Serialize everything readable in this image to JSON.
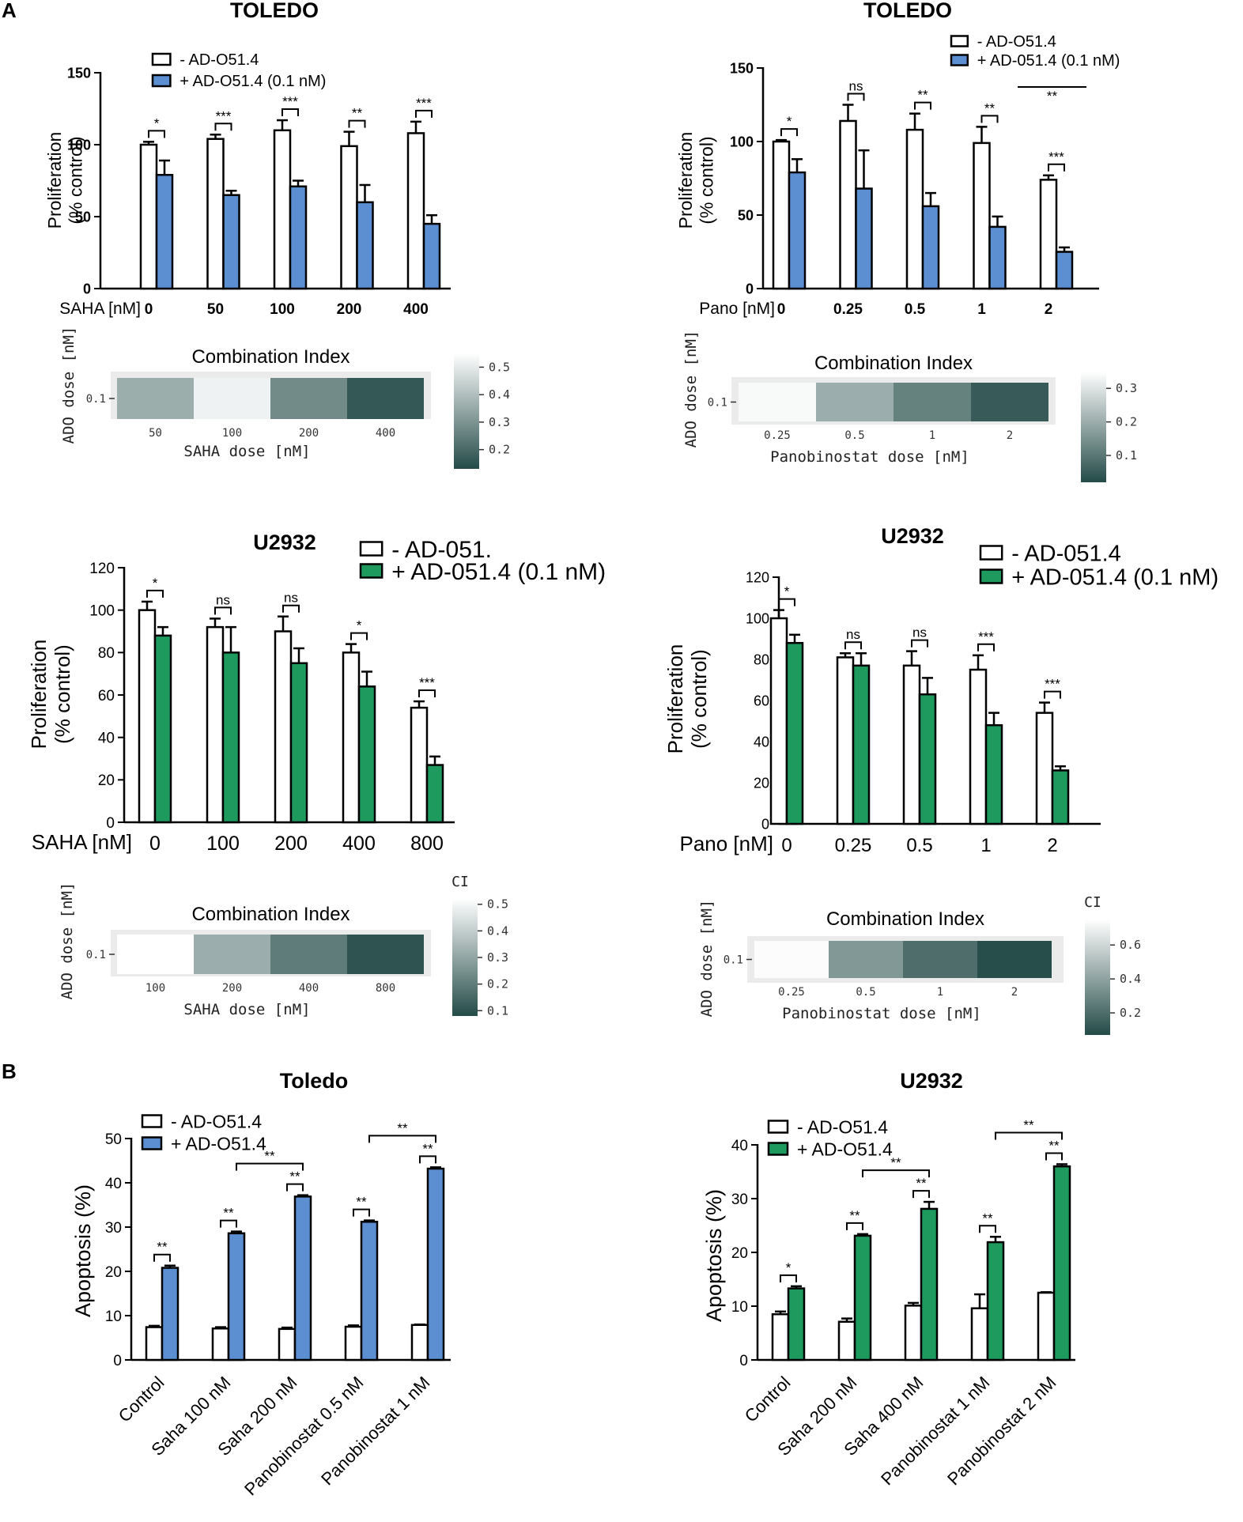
{
  "panel_labels": {
    "a": "A",
    "b": "B"
  },
  "colors": {
    "blue": "#5b8fd2",
    "green": "#1f9a5e",
    "open": "#ffffff",
    "ci_high": "#ffffff",
    "ci_low": "#244b48"
  },
  "chart_data": [
    {
      "id": "toledo_saha_prolif",
      "type": "bar",
      "title": "TOLEDO",
      "xlabel": "SAHA [nM]",
      "ylabel": [
        "Proliferation",
        "(% control)"
      ],
      "ylim": [
        0,
        150
      ],
      "yticks": [
        "0",
        "50",
        "100",
        "150"
      ],
      "categories": [
        "0",
        "50",
        "100",
        "200",
        "400"
      ],
      "legend": [
        "- AD-O51.4",
        "+ AD-O51.4  (0.1 nM)"
      ],
      "series": [
        {
          "name": "- AD-O51.4",
          "values": [
            100,
            104,
            110,
            99,
            108
          ],
          "err": [
            2,
            3,
            7,
            10,
            8
          ]
        },
        {
          "name": "+ AD-O51.4 (0.1 nM)",
          "values": [
            79,
            65,
            71,
            60,
            45
          ],
          "err": [
            10,
            3,
            4,
            12,
            6
          ]
        }
      ],
      "sig": [
        "*",
        "***",
        "***",
        "**",
        "***"
      ]
    },
    {
      "id": "toledo_pano_prolif",
      "type": "bar",
      "title": "TOLEDO",
      "xlabel": "Pano [nM]",
      "ylabel": [
        "Proliferation",
        "(% control)"
      ],
      "ylim": [
        0,
        150
      ],
      "yticks": [
        "0",
        "50",
        "100",
        "150"
      ],
      "categories": [
        "0",
        "0.25",
        "0.5",
        "1",
        "2"
      ],
      "legend": [
        "- AD-O51.4",
        "+ AD-051.4 (0.1 nM)"
      ],
      "series": [
        {
          "name": "- AD-O51.4",
          "values": [
            100,
            114,
            108,
            99,
            74
          ],
          "err": [
            1,
            11,
            11,
            11,
            3
          ]
        },
        {
          "name": "+ AD-051.4 (0.1 nM)",
          "values": [
            79,
            68,
            56,
            42,
            25
          ],
          "err": [
            9,
            26,
            9,
            7,
            3
          ]
        }
      ],
      "sig": [
        "*",
        "ns",
        "**",
        "**",
        "***"
      ],
      "extra_sig": "**"
    },
    {
      "id": "toledo_saha_ci",
      "type": "heatmap",
      "title": "Combination Index",
      "xlabel": "SAHA dose [nM]",
      "ylabel": "ADO dose [nM]",
      "rows": [
        "0.1"
      ],
      "categories": [
        "50",
        "100",
        "200",
        "400"
      ],
      "values": [
        0.36,
        0.52,
        0.28,
        0.16
      ],
      "colorbar": {
        "min": 0.13,
        "max": 0.55,
        "ticks": [
          "0.5",
          "0.4",
          "0.3",
          "0.2"
        ],
        "tick_values": [
          0.5,
          0.4,
          0.3,
          0.2
        ],
        "title": ""
      }
    },
    {
      "id": "toledo_pano_ci",
      "type": "heatmap",
      "title": "Combination Index",
      "xlabel": "Panobinostat dose [nM]",
      "ylabel": "ADO dose [nM]",
      "rows": [
        "0.1"
      ],
      "categories": [
        "0.25",
        "0.5",
        "1",
        "2"
      ],
      "values": [
        0.34,
        0.2,
        0.12,
        0.05
      ],
      "colorbar": {
        "min": 0.02,
        "max": 0.35,
        "ticks": [
          "0.3",
          "0.2",
          "0.1"
        ],
        "tick_values": [
          0.3,
          0.2,
          0.1
        ],
        "title": ""
      }
    },
    {
      "id": "u2932_saha_prolif",
      "type": "bar",
      "title": "U2932",
      "xlabel": "SAHA [nM]",
      "ylabel": [
        "Proliferation",
        "(% control)"
      ],
      "ylim": [
        0,
        120
      ],
      "yticks": [
        "0",
        "20",
        "40",
        "60",
        "80",
        "100",
        "120"
      ],
      "categories": [
        "0",
        "100",
        "200",
        "400",
        "800"
      ],
      "legend": [
        "- AD-051.",
        "+ AD-051.4 (0.1 nM)"
      ],
      "series": [
        {
          "name": "- AD-051.",
          "values": [
            100,
            92,
            90,
            80,
            54
          ],
          "err": [
            4,
            4,
            7,
            4,
            3
          ]
        },
        {
          "name": "+ AD-051.4 (0.1 nM)",
          "values": [
            88,
            80,
            75,
            64,
            27
          ],
          "err": [
            4,
            12,
            7,
            7,
            4
          ]
        }
      ],
      "sig": [
        "*",
        "ns",
        "ns",
        "*",
        "***"
      ]
    },
    {
      "id": "u2932_pano_prolif",
      "type": "bar",
      "title": "U2932",
      "xlabel": "Pano [nM]",
      "ylabel": [
        "Proliferation",
        "(% control)"
      ],
      "ylim": [
        0,
        120
      ],
      "yticks": [
        "0",
        "20",
        "40",
        "60",
        "80",
        "100",
        "120"
      ],
      "categories": [
        "0",
        "0.25",
        "0.5",
        "1",
        "2"
      ],
      "legend": [
        "- AD-051.4",
        "+ AD-051.4 (0.1 nM)"
      ],
      "series": [
        {
          "name": "- AD-051.4",
          "values": [
            100,
            81,
            77,
            75,
            54
          ],
          "err": [
            4,
            2,
            7,
            7,
            5
          ]
        },
        {
          "name": "+ AD-051.4 (0.1 nM)",
          "values": [
            88,
            77,
            63,
            48,
            26
          ],
          "err": [
            4,
            6,
            8,
            6,
            2
          ]
        }
      ],
      "sig": [
        "*",
        "ns",
        "ns",
        "***",
        "***"
      ]
    },
    {
      "id": "u2932_saha_ci",
      "type": "heatmap",
      "title": "Combination Index",
      "xlabel": "SAHA dose [nM]",
      "ylabel": "ADO dose [nM]",
      "rows": [
        "0.1"
      ],
      "categories": [
        "100",
        "200",
        "400",
        "800"
      ],
      "values": [
        0.52,
        0.32,
        0.2,
        0.1
      ],
      "colorbar": {
        "min": 0.08,
        "max": 0.52,
        "ticks": [
          "0.5",
          "0.4",
          "0.3",
          "0.2",
          "0.1"
        ],
        "tick_values": [
          0.5,
          0.4,
          0.3,
          0.2,
          0.1
        ],
        "title": "CI"
      }
    },
    {
      "id": "u2932_pano_ci",
      "type": "heatmap",
      "title": "Combination Index",
      "xlabel": "Panobinostat dose [nM]",
      "ylabel": "ADO dose [nM]",
      "rows": [
        "0.1"
      ],
      "categories": [
        "0.25",
        "0.5",
        "1",
        "2"
      ],
      "values": [
        0.74,
        0.36,
        0.2,
        0.08
      ],
      "colorbar": {
        "min": 0.07,
        "max": 0.75,
        "ticks": [
          "0.6",
          "0.4",
          "0.2"
        ],
        "tick_values": [
          0.6,
          0.4,
          0.2
        ],
        "title": "CI"
      }
    },
    {
      "id": "toledo_apoptosis",
      "type": "bar",
      "title": "Toledo",
      "xlabel": "",
      "ylabel": [
        "Apoptosis (%)"
      ],
      "ylim": [
        0,
        50
      ],
      "yticks": [
        "0",
        "10",
        "20",
        "30",
        "40",
        "50"
      ],
      "categories": [
        "Control",
        "Saha 100 nM",
        "Saha 200 nM",
        "Panobinostat 0.5 nM",
        "Panobinostat 1 nM"
      ],
      "legend": [
        "- AD-O51.4",
        "+ AD-O51.4"
      ],
      "series": [
        {
          "name": "- AD-O51.4",
          "values": [
            7.4,
            7.1,
            7.0,
            7.5,
            7.9
          ],
          "err": [
            0.3,
            0.3,
            0.3,
            0.3,
            0.1
          ]
        },
        {
          "name": "+ AD-O51.4",
          "values": [
            20.8,
            28.6,
            36.9,
            31.2,
            43.2
          ],
          "err": [
            0.5,
            0.4,
            0.3,
            0.3,
            0.3
          ]
        }
      ],
      "sig": [
        "**",
        "**",
        "**",
        "**",
        "**"
      ],
      "bridge_sig": [
        "**",
        "**"
      ]
    },
    {
      "id": "u2932_apoptosis",
      "type": "bar",
      "title": "U2932",
      "xlabel": "",
      "ylabel": [
        "Apoptosis (%)"
      ],
      "ylim": [
        0,
        40
      ],
      "yticks": [
        "0",
        "10",
        "20",
        "30",
        "40"
      ],
      "categories": [
        "Control",
        "Saha 200 nM",
        "Saha 400 nM",
        "Panobinostat 1 nM",
        "Panobinostat 2 nM"
      ],
      "legend": [
        "-  AD-O51.4",
        "+ AD-O51.4"
      ],
      "series": [
        {
          "name": "- AD-O51.4",
          "values": [
            8.5,
            7.1,
            10.1,
            9.6,
            12.5
          ],
          "err": [
            0.5,
            0.6,
            0.5,
            2.6,
            0.1
          ]
        },
        {
          "name": "+ AD-O51.4",
          "values": [
            13.3,
            23.1,
            28.1,
            21.9,
            36.0
          ],
          "err": [
            0.4,
            0.3,
            1.3,
            1.0,
            0.4
          ]
        }
      ],
      "sig": [
        "*",
        "**",
        "**",
        "**",
        "**"
      ],
      "bridge_sig": [
        "**",
        "**"
      ]
    }
  ]
}
